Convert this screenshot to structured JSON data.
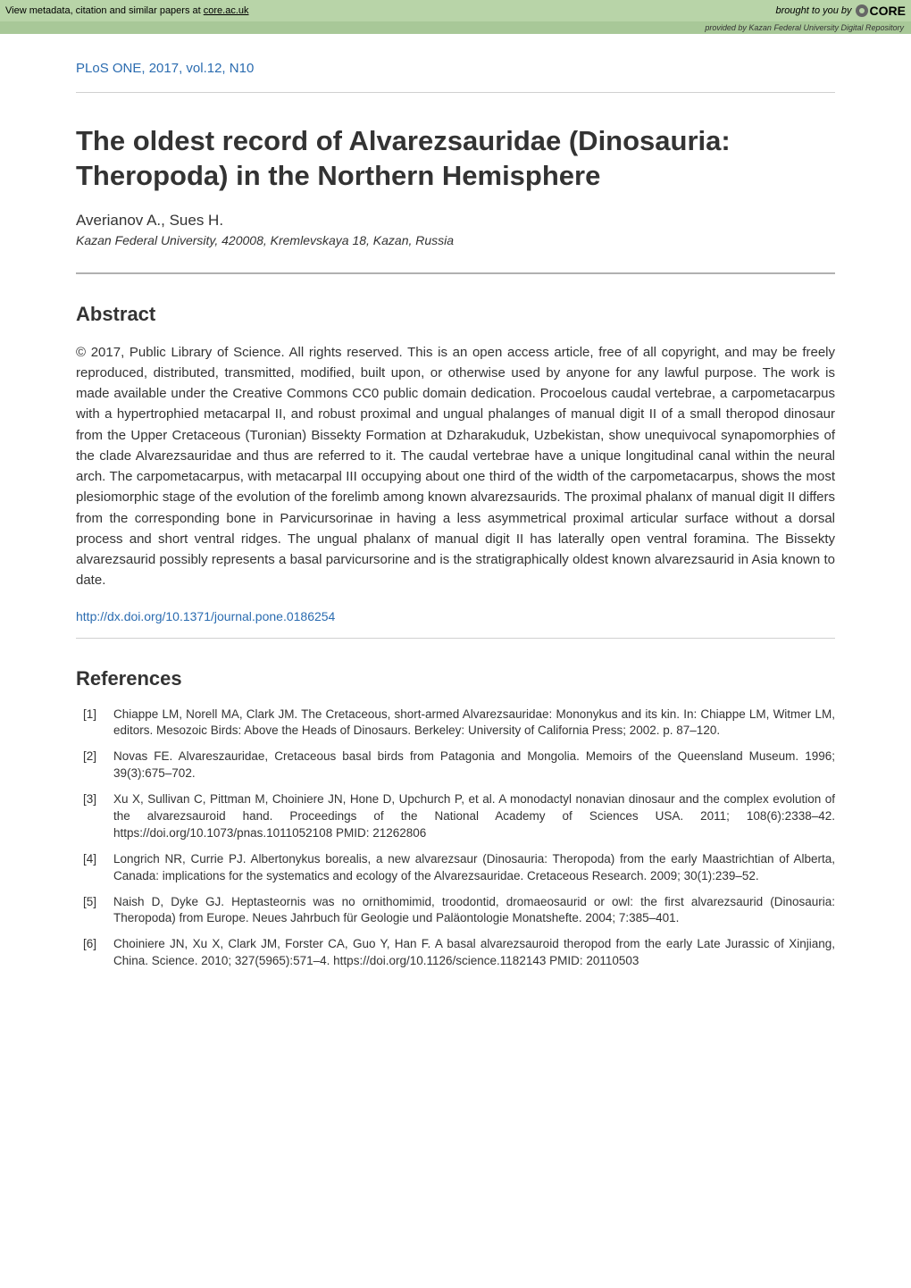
{
  "core_banner": {
    "left_text_prefix": "View metadata, citation and similar papers at ",
    "left_link_text": "core.ac.uk",
    "right_text": "brought to you by",
    "logo_text": "CORE"
  },
  "provided_by": {
    "prefix": "provided by ",
    "source": "Kazan Federal University Digital Repository"
  },
  "journal_info": "PLoS ONE, 2017, vol.12, N10",
  "title": "The oldest record of Alvarezsauridae (Dinosauria: Theropoda) in the Northern Hemisphere",
  "authors": "Averianov A., Sues H.",
  "affiliation": "Kazan Federal University, 420008, Kremlevskaya 18, Kazan, Russia",
  "abstract_heading": "Abstract",
  "abstract_text": "© 2017, Public Library of Science. All rights reserved. This is an open access article, free of all copyright, and may be freely reproduced, distributed, transmitted, modified, built upon, or otherwise used by anyone for any lawful purpose. The work is made available under the Creative Commons CC0 public domain dedication. Procoelous caudal vertebrae, a carpometacarpus with a hypertrophied metacarpal II, and robust proximal and ungual phalanges of manual digit II of a small theropod dinosaur from the Upper Cretaceous (Turonian) Bissekty Formation at Dzharakuduk, Uzbekistan, show unequivocal synapomorphies of the clade Alvarezsauridae and thus are referred to it. The caudal vertebrae have a unique longitudinal canal within the neural arch. The carpometacarpus, with metacarpal III occupying about one third of the width of the carpometacarpus, shows the most plesiomorphic stage of the evolution of the forelimb among known alvarezsaurids. The proximal phalanx of manual digit II differs from the corresponding bone in Parvicursorinae in having a less asymmetrical proximal articular surface without a dorsal process and short ventral ridges. The ungual phalanx of manual digit II has laterally open ventral foramina. The Bissekty alvarezsaurid possibly represents a basal parvicursorine and is the stratigraphically oldest known alvarezsaurid in Asia known to date.",
  "doi_link": "http://dx.doi.org/10.1371/journal.pone.0186254",
  "references_heading": "References",
  "references": [
    "Chiappe LM, Norell MA, Clark JM. The Cretaceous, short-armed Alvarezsauridae: Mononykus and its kin. In: Chiappe LM, Witmer LM, editors. Mesozoic Birds: Above the Heads of Dinosaurs. Berkeley: University of California Press; 2002. p. 87–120.",
    "Novas FE. Alvareszauridae, Cretaceous basal birds from Patagonia and Mongolia. Memoirs of the Queensland Museum. 1996; 39(3):675–702.",
    "Xu X, Sullivan C, Pittman M, Choiniere JN, Hone D, Upchurch P, et al. A monodactyl nonavian dinosaur and the complex evolution of the alvarezsauroid hand. Proceedings of the National Academy of Sciences USA. 2011; 108(6):2338–42. https://doi.org/10.1073/pnas.1011052108 PMID: 21262806",
    "Longrich NR, Currie PJ. Albertonykus borealis, a new alvarezsaur (Dinosauria: Theropoda) from the early Maastrichtian of Alberta, Canada: implications for the systematics and ecology of the Alvarezsauridae. Cretaceous Research. 2009; 30(1):239–52.",
    "Naish D, Dyke GJ. Heptasteornis was no ornithomimid, troodontid, dromaeosaurid or owl: the first alvarezsaurid (Dinosauria: Theropoda) from Europe. Neues Jahrbuch für Geologie und Paläontologie Monatshefte. 2004; 7:385–401.",
    "Choiniere JN, Xu X, Clark JM, Forster CA, Guo Y, Han F. A basal alvarezsauroid theropod from the early Late Jurassic of Xinjiang, China. Science. 2010; 327(5965):571–4. https://doi.org/10.1126/science.1182143 PMID: 20110503"
  ],
  "colors": {
    "banner_bg": "#b8d4a8",
    "provided_bg": "#a8c898",
    "link_color": "#2b6cb0",
    "text_color": "#333333",
    "divider_color": "#d0d0d0",
    "thick_divider_color": "#b0b0b0"
  }
}
